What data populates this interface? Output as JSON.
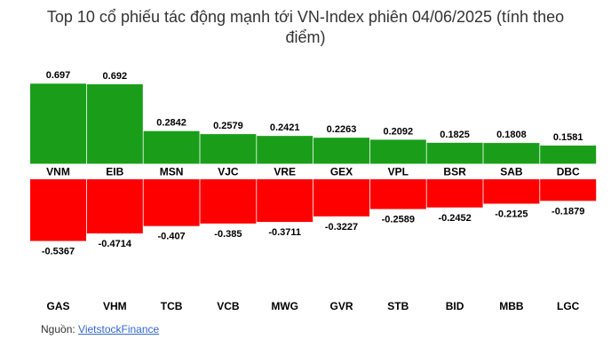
{
  "chart_data": {
    "type": "bar",
    "title": "Top 10 cổ phiếu tác động mạnh tới VN-Index phiên 04/06/2025 (tính theo điểm)",
    "ylim": [
      -0.6,
      0.75
    ],
    "grid": false,
    "colors": {
      "positive": "#1a9e1a",
      "negative": "#ff0000"
    },
    "series": [
      {
        "categories": [
          "VNM",
          "EIB",
          "MSN",
          "VJC",
          "VRE",
          "GEX",
          "VPL",
          "BSR",
          "SAB",
          "DBC"
        ],
        "values": [
          0.697,
          0.692,
          0.2842,
          0.2579,
          0.2421,
          0.2263,
          0.2092,
          0.1825,
          0.1808,
          0.1581
        ],
        "value_labels": [
          "0.697",
          "0.692",
          "0.2842",
          "0.2579",
          "0.2421",
          "0.2263",
          "0.2092",
          "0.1825",
          "0.1808",
          "0.1581"
        ]
      },
      {
        "categories": [
          "GAS",
          "VHM",
          "TCB",
          "VCB",
          "MWG",
          "GVR",
          "STB",
          "BID",
          "MBB",
          "LGC"
        ],
        "values": [
          -0.5367,
          -0.4714,
          -0.407,
          -0.385,
          -0.3711,
          -0.3227,
          -0.2589,
          -0.2452,
          -0.2125,
          -0.1879
        ],
        "value_labels": [
          "-0.5367",
          "-0.4714",
          "-0.407",
          "-0.385",
          "-0.3711",
          "-0.3227",
          "-0.2589",
          "-0.2452",
          "-0.2125",
          "-0.1879"
        ]
      }
    ]
  },
  "source": {
    "label": "Nguồn:",
    "link": "VietstockFinance"
  }
}
